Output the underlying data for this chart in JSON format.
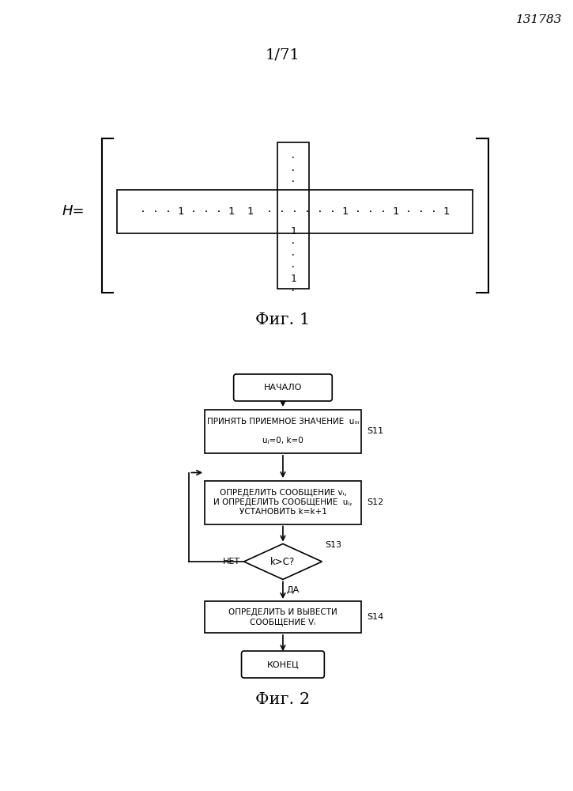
{
  "page_label": "1/71",
  "stamp": "131783",
  "fig1_label": "Фиг. 1",
  "fig2_label": "Фиг. 2",
  "H_label": "H=",
  "matrix_row_text": "· · · 1 · · · 1  1  · · · · · · 1 · · · 1 · · · 1",
  "matrix_col_text_above": "·\n·\n·",
  "matrix_col_text_below": "1\n·\n·\n·\n1\n·",
  "matrix_col_mid": "1",
  "flowchart": {
    "start_text": "НАЧАЛО",
    "s11_text": "ПРИНЯТЬ ПРИЕМНОЕ ЗНАЧЕНИЕ  u₀ᵢ\n\nuⱼ=0, k=0",
    "s12_text": "ОПРЕДЕЛИТЬ СООБЩЕНИЕ vᵢ,\nИ ОПРЕДЕЛИТЬ СООБЩЕНИЕ  uⱼ,\nУСТАНОВИТЬ k=k+1",
    "s13_text": "k>C?",
    "s14_text": "ОПРЕДЕЛИТЬ И ВЫВЕСТИ\nСООБЩЕНИЕ Vᵢ",
    "end_text": "КОНЕЦ",
    "s11_label": "S11",
    "s12_label": "S12",
    "s13_label": "S13",
    "s14_label": "S14",
    "no_label": "НЕТ",
    "yes_label": "ДА"
  },
  "bg_color": "#ffffff",
  "line_color": "#000000",
  "text_color": "#000000"
}
